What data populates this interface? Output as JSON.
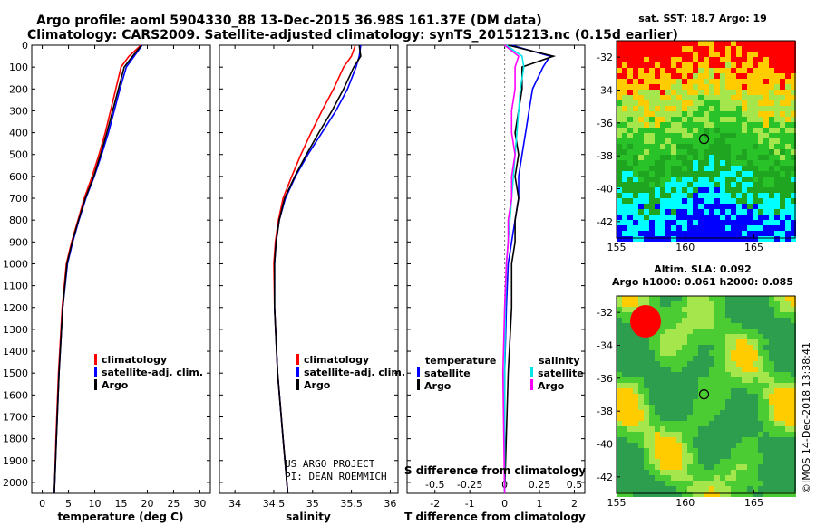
{
  "header": {
    "title_line1": "Argo profile: aoml 5904330_88 13-Dec-2015 36.98S 161.37E (DM data)",
    "title_line2": "Climatology: CARS2009. Satellite-adjusted climatology: synTS_20151213.nc (0.15d earlier)"
  },
  "colors": {
    "climatology": "#ff0000",
    "satellite": "#0000ff",
    "argo": "#000000",
    "sal_satellite": "#00e5e5",
    "sal_argo": "#ff00ff"
  },
  "legend": {
    "climatology": "climatology",
    "satellite": "satellite-adj. clim.",
    "argo": "Argo",
    "temperature_head": "temperature",
    "salinity_head": "salinity",
    "sat_short": "satellite"
  },
  "credit": {
    "line1": "US ARGO PROJECT",
    "line2": "PI: DEAN ROEMMICH"
  },
  "chart_data": [
    {
      "type": "line",
      "xlabel": "temperature (deg C)",
      "ylabel": "",
      "xlim": [
        -2,
        32
      ],
      "ylim": [
        2050,
        0
      ],
      "xticks": [
        "0",
        "5",
        "10",
        "15",
        "20",
        "25",
        "30"
      ],
      "yticks": [
        "0",
        "100",
        "200",
        "300",
        "400",
        "500",
        "600",
        "700",
        "800",
        "900",
        "1000",
        "1100",
        "1200",
        "1300",
        "1400",
        "1500",
        "1600",
        "1700",
        "1800",
        "1900",
        "2000"
      ],
      "series": [
        {
          "name": "climatology",
          "color": "#ff0000",
          "x": [
            18.8,
            16.5,
            15.0,
            14.0,
            13.0,
            12.0,
            10.8,
            9.5,
            8.0,
            6.8,
            5.6,
            4.6,
            3.8,
            3.1,
            2.6,
            2.3
          ],
          "y": [
            0,
            50,
            100,
            200,
            300,
            400,
            500,
            600,
            700,
            800,
            900,
            1000,
            1200,
            1500,
            1800,
            2050
          ]
        },
        {
          "name": "satellite-adj. clim.",
          "color": "#0000ff",
          "x": [
            19.0,
            17.5,
            16.0,
            14.8,
            13.7,
            12.6,
            11.3,
            9.9,
            8.3,
            7.0,
            5.8,
            4.8,
            3.9,
            3.2,
            2.7,
            2.3
          ],
          "y": [
            0,
            50,
            100,
            200,
            300,
            400,
            500,
            600,
            700,
            800,
            900,
            1000,
            1200,
            1500,
            1800,
            2050
          ]
        },
        {
          "name": "Argo",
          "color": "#000000",
          "x": [
            18.9,
            17.2,
            15.6,
            14.5,
            13.4,
            12.3,
            11.1,
            9.8,
            8.2,
            6.9,
            5.7,
            4.7,
            3.9,
            3.2,
            2.7,
            2.3
          ],
          "y": [
            0,
            50,
            100,
            200,
            300,
            400,
            500,
            600,
            700,
            800,
            900,
            1000,
            1200,
            1500,
            1800,
            2050
          ]
        }
      ]
    },
    {
      "type": "line",
      "xlabel": "salinity",
      "ylabel": "",
      "xlim": [
        33.8,
        36.1
      ],
      "ylim": [
        2050,
        0
      ],
      "xticks": [
        "34",
        "34.5",
        "35",
        "35.5",
        "36"
      ],
      "series": [
        {
          "name": "climatology",
          "color": "#ff0000",
          "x": [
            35.55,
            35.5,
            35.4,
            35.27,
            35.12,
            34.98,
            34.85,
            34.73,
            34.62,
            34.56,
            34.52,
            34.5,
            34.51,
            34.55,
            34.62,
            34.68
          ],
          "y": [
            0,
            50,
            100,
            200,
            300,
            400,
            500,
            600,
            700,
            800,
            900,
            1000,
            1200,
            1500,
            1800,
            2050
          ]
        },
        {
          "name": "satellite-adj. clim.",
          "color": "#0000ff",
          "x": [
            35.62,
            35.6,
            35.56,
            35.45,
            35.3,
            35.12,
            34.94,
            34.78,
            34.65,
            34.57,
            34.53,
            34.51,
            34.51,
            34.55,
            34.62,
            34.68
          ],
          "y": [
            0,
            50,
            100,
            200,
            300,
            400,
            500,
            600,
            700,
            800,
            900,
            1000,
            1200,
            1500,
            1800,
            2050
          ]
        },
        {
          "name": "Argo",
          "color": "#000000",
          "x": [
            35.6,
            35.62,
            35.53,
            35.4,
            35.25,
            35.08,
            34.92,
            34.77,
            34.64,
            34.57,
            34.53,
            34.51,
            34.51,
            34.55,
            34.62,
            34.68
          ],
          "y": [
            0,
            50,
            100,
            200,
            300,
            400,
            500,
            600,
            700,
            800,
            900,
            1000,
            1200,
            1500,
            1800,
            2050
          ]
        }
      ]
    },
    {
      "type": "line",
      "xlabel": "T difference from climatology",
      "xlabel_top": "S difference from climatology",
      "ylabel": "",
      "xlim": [
        -2.8,
        2.3
      ],
      "ylim": [
        2050,
        0
      ],
      "xticks": [
        "-2",
        "-1",
        "0",
        "1",
        "2"
      ],
      "xticks_s": [
        "-0.5",
        "-0.25",
        "0",
        "0.25",
        "0.5"
      ],
      "series": [
        {
          "name": "temperature satellite",
          "color": "#0000ff",
          "x": [
            0.2,
            1.3,
            1.1,
            0.8,
            0.7,
            0.6,
            0.5,
            0.4,
            0.4,
            0.3,
            0.2,
            0.1,
            0.05,
            0.0,
            0.0
          ],
          "y": [
            0,
            50,
            100,
            200,
            300,
            400,
            500,
            600,
            700,
            800,
            900,
            1000,
            1200,
            1500,
            2050
          ]
        },
        {
          "name": "temperature Argo",
          "color": "#000000",
          "x": [
            0.1,
            1.4,
            0.5,
            0.5,
            0.4,
            0.3,
            0.4,
            0.3,
            0.4,
            0.3,
            0.3,
            0.2,
            0.2,
            0.1,
            0.0
          ],
          "y": [
            0,
            50,
            100,
            200,
            300,
            400,
            500,
            600,
            700,
            800,
            900,
            1000,
            1200,
            1500,
            2050
          ]
        },
        {
          "name": "salinity satellite",
          "color": "#00e5e5",
          "x": [
            0.05,
            0.5,
            0.55,
            0.45,
            0.4,
            0.35,
            0.3,
            0.25,
            0.2,
            0.15,
            0.1,
            0.05,
            0.02,
            0.0,
            0.0
          ],
          "y": [
            0,
            50,
            100,
            200,
            300,
            400,
            500,
            600,
            700,
            800,
            900,
            1000,
            1200,
            1500,
            2050
          ]
        },
        {
          "name": "salinity Argo",
          "color": "#ff00ff",
          "x": [
            0.0,
            0.4,
            0.3,
            0.3,
            0.2,
            0.2,
            0.3,
            0.2,
            0.2,
            0.1,
            0.1,
            0.05,
            0.0,
            -0.05,
            0.0
          ],
          "y": [
            0,
            50,
            100,
            200,
            300,
            400,
            500,
            600,
            700,
            800,
            900,
            1000,
            1200,
            1500,
            2050
          ]
        }
      ]
    },
    {
      "type": "heatmap",
      "title": "sat. SST: 18.7  Argo: 19",
      "xlim": [
        155,
        168
      ],
      "ylim": [
        -43,
        -31
      ],
      "xticks": [
        "155",
        "160",
        "165"
      ],
      "yticks": [
        "-32",
        "-34",
        "-36",
        "-38",
        "-40",
        "-42"
      ],
      "marker": {
        "lon": 161.37,
        "lat": -36.98
      }
    },
    {
      "type": "heatmap",
      "title": "Altim. SLA: 0.092",
      "subtitle": "Argo h1000: 0.061 h2000: 0.085",
      "xlim": [
        155,
        168
      ],
      "ylim": [
        -43,
        -31
      ],
      "xticks": [
        "155",
        "160",
        "165"
      ],
      "yticks": [
        "-32",
        "-34",
        "-36",
        "-38",
        "-40",
        "-42"
      ],
      "marker": {
        "lon": 161.37,
        "lat": -36.98
      }
    }
  ],
  "stamp": "©IMOS 14-Dec-2018 13:38:41"
}
